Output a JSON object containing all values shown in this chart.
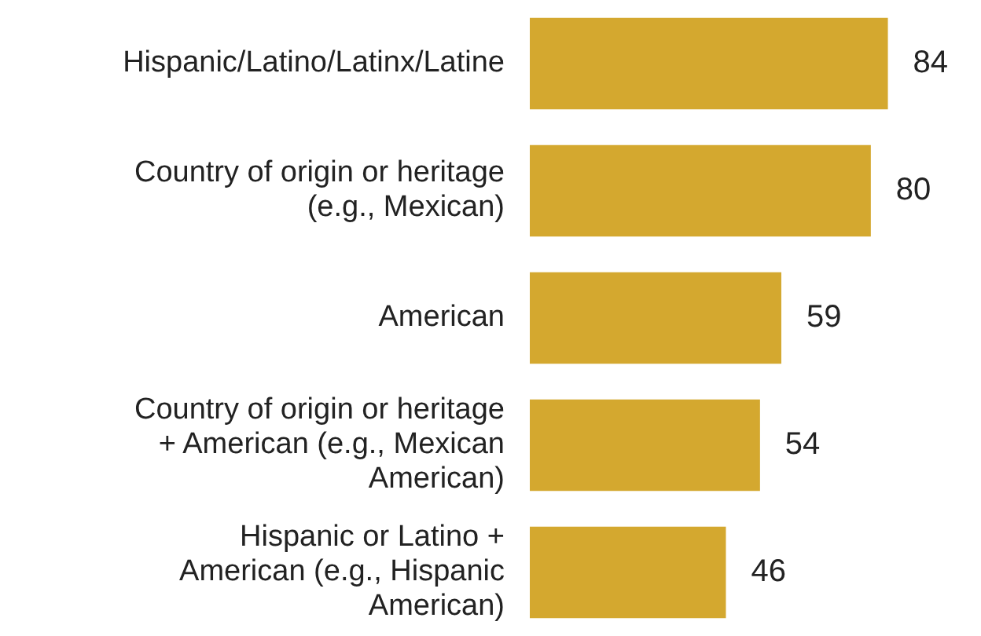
{
  "chart_data": {
    "type": "bar",
    "orientation": "horizontal",
    "categories": [
      "Hispanic/Latino/Latinx/Latine",
      "Country of origin or heritage (e.g., Mexican)",
      "American",
      "Country of origin or heritage + American (e.g., Mexican American)",
      "Hispanic or Latino + American (e.g., Hispanic American)"
    ],
    "values": [
      84,
      80,
      59,
      54,
      46
    ],
    "color": "#d4a82f",
    "data_labels": true,
    "grid": false,
    "legend": false
  }
}
